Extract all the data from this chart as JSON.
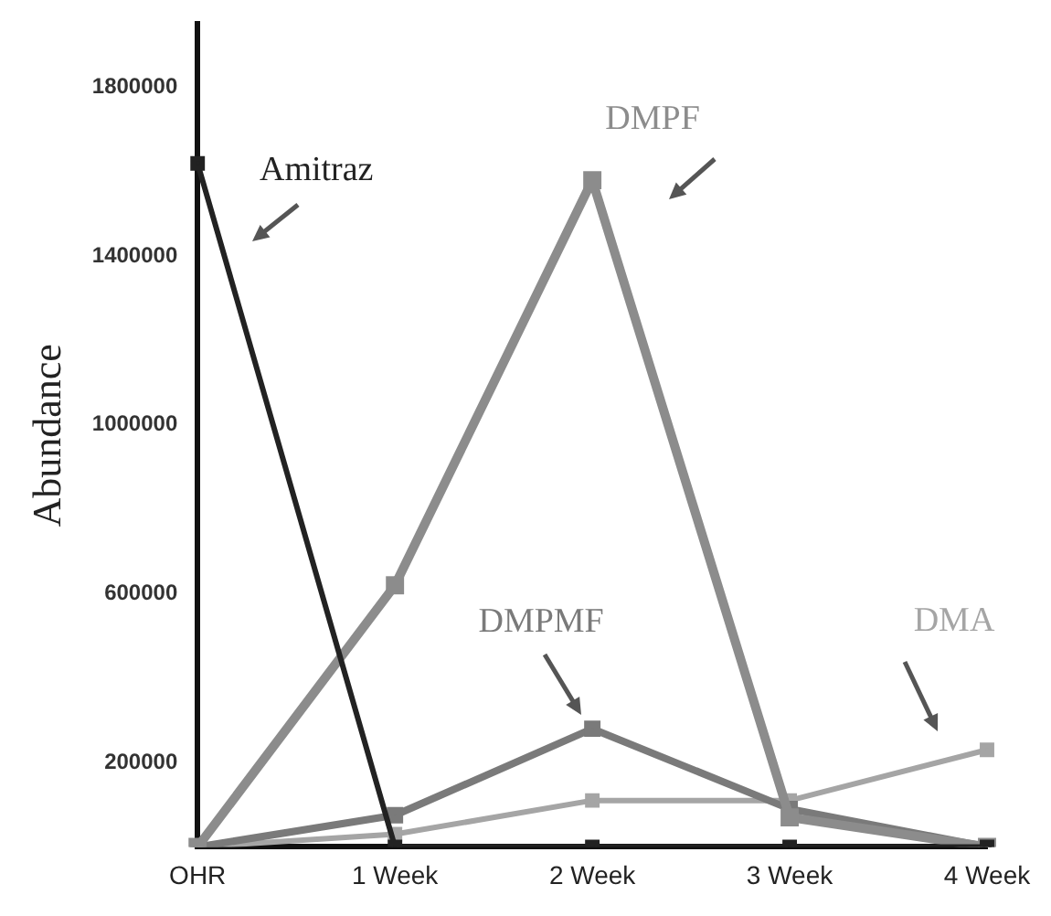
{
  "chart_data": {
    "type": "line",
    "ylabel": "Abundance",
    "categories": [
      "OHR",
      "1 Week",
      "2 Week",
      "3 Week",
      "4 Week"
    ],
    "series": [
      {
        "name": "Amitraz",
        "color": "#222222",
        "values": [
          1620000,
          0,
          0,
          0,
          0
        ]
      },
      {
        "name": "DMPF",
        "color": "#8c8c8c",
        "values": [
          0,
          620000,
          1580000,
          70000,
          0
        ]
      },
      {
        "name": "DMPMF",
        "color": "#7a7a7a",
        "values": [
          0,
          75000,
          280000,
          90000,
          0
        ]
      },
      {
        "name": "DMA",
        "color": "#a5a5a5",
        "values": [
          0,
          30000,
          110000,
          110000,
          230000
        ]
      }
    ],
    "ylim": [
      0,
      1950000
    ],
    "yticks": [
      200000,
      600000,
      1000000,
      1400000,
      1800000
    ],
    "grid": false,
    "legend": false,
    "marker": "square",
    "line_style": "solid"
  }
}
